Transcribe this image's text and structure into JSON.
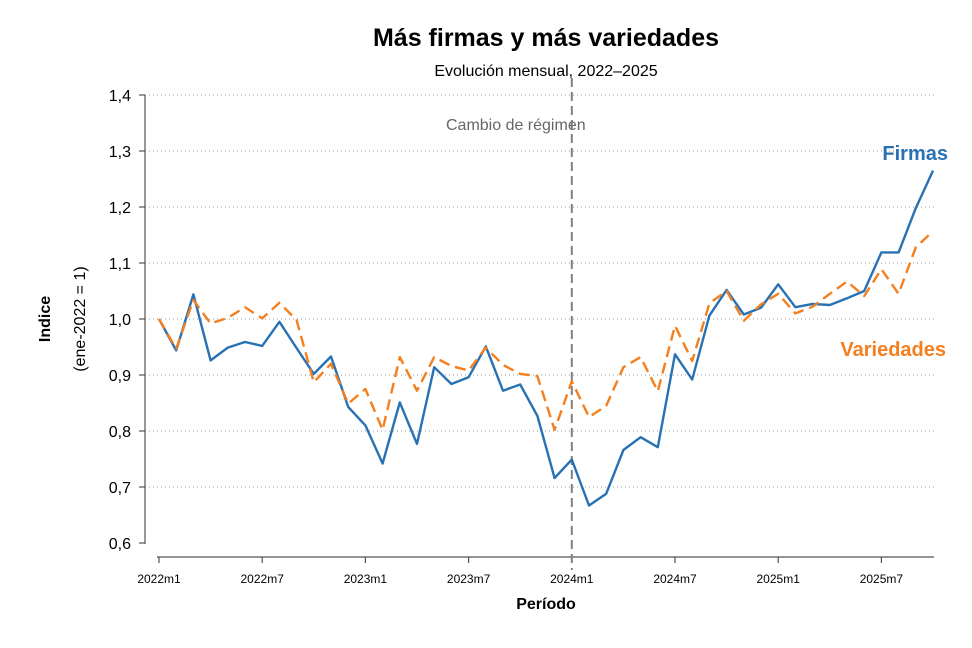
{
  "chart_data": {
    "type": "line",
    "title": "Más firmas y más variedades",
    "subtitle": "Evolución mensual, 2022–2025",
    "xlabel": "Período",
    "ylabel": "Indice",
    "ylabel_sub": "(ene-2022 = 1)",
    "ylim": [
      0.6,
      1.4
    ],
    "yticks": [
      "0,6",
      "0,7",
      "0,8",
      "0,9",
      "1,0",
      "1,1",
      "1,2",
      "1,3",
      "1,4"
    ],
    "xticks": [
      "2022m1",
      "2022m7",
      "2023m1",
      "2023m7",
      "2024m1",
      "2024m7",
      "2025m1",
      "2025m7"
    ],
    "grid": "horizontal dotted",
    "legend": "direct labels at right end of series",
    "annotation": {
      "text": "Cambio de régimen",
      "x": "2024m1"
    },
    "series": [
      {
        "name": "Firmas",
        "color": "#2872b4",
        "style": "solid",
        "values": [
          1.0,
          0.944,
          1.044,
          0.926,
          0.949,
          0.959,
          0.952,
          0.995,
          0.948,
          0.902,
          0.933,
          0.843,
          0.81,
          0.742,
          0.851,
          0.777,
          0.914,
          0.884,
          0.896,
          0.951,
          0.872,
          0.883,
          0.827,
          0.716,
          0.749,
          0.667,
          0.688,
          0.766,
          0.789,
          0.771,
          0.937,
          0.892,
          1.006,
          1.052,
          1.008,
          1.02,
          1.062,
          1.021,
          1.027,
          1.025,
          1.037,
          1.05,
          1.119,
          1.119,
          1.198,
          1.265
        ]
      },
      {
        "name": "Variedades",
        "color": "#f47f1f",
        "style": "dashed",
        "values": [
          1.0,
          0.947,
          1.034,
          0.992,
          1.002,
          1.021,
          1.001,
          1.029,
          0.998,
          0.887,
          0.92,
          0.849,
          0.875,
          0.802,
          0.932,
          0.872,
          0.932,
          0.916,
          0.908,
          0.949,
          0.918,
          0.902,
          0.898,
          0.802,
          0.889,
          0.825,
          0.845,
          0.914,
          0.932,
          0.871,
          0.988,
          0.925,
          1.028,
          1.05,
          0.997,
          1.026,
          1.045,
          1.01,
          1.022,
          1.045,
          1.067,
          1.041,
          1.089,
          1.045,
          1.128,
          1.157
        ]
      }
    ]
  }
}
